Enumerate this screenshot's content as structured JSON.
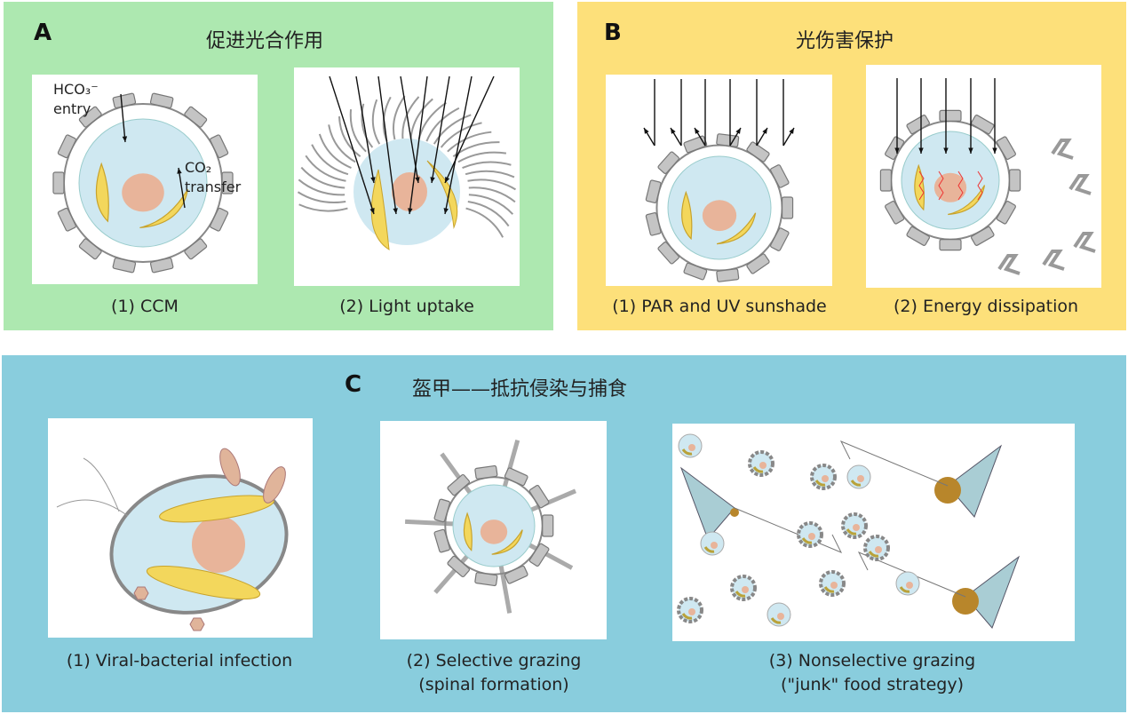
{
  "colors": {
    "panel_a": "#ade8b0",
    "panel_b": "#fde07a",
    "panel_c": "#89cddd",
    "cytoplasm": "#cfe8f1",
    "nucleus": "#e8b49a",
    "chloroplast": "#f3d75c",
    "coccolith": "#c4c4c4"
  },
  "panel_a": {
    "letter": "A",
    "title": "促进光合作用",
    "sub1": {
      "caption": "(1) CCM",
      "label_hco3": "HCO₃⁻",
      "label_entry": "entry",
      "label_co2": "CO₂",
      "label_transfer": "transfer"
    },
    "sub2": {
      "caption": "(2) Light uptake"
    }
  },
  "panel_b": {
    "letter": "B",
    "title": "光伤害保护",
    "sub1": {
      "caption": "(1) PAR and UV sunshade"
    },
    "sub2": {
      "caption": "(2) Energy dissipation"
    }
  },
  "panel_c": {
    "letter": "C",
    "title": "盔甲——抵抗侵染与捕食",
    "sub1": {
      "caption": "(1) Viral-bacterial infection"
    },
    "sub2": {
      "caption_line1": "(2) Selective grazing",
      "caption_line2": "(spinal formation)"
    },
    "sub3": {
      "caption_line1": "(3) Nonselective grazing",
      "caption_line2": "(\"junk\" food strategy)"
    }
  }
}
